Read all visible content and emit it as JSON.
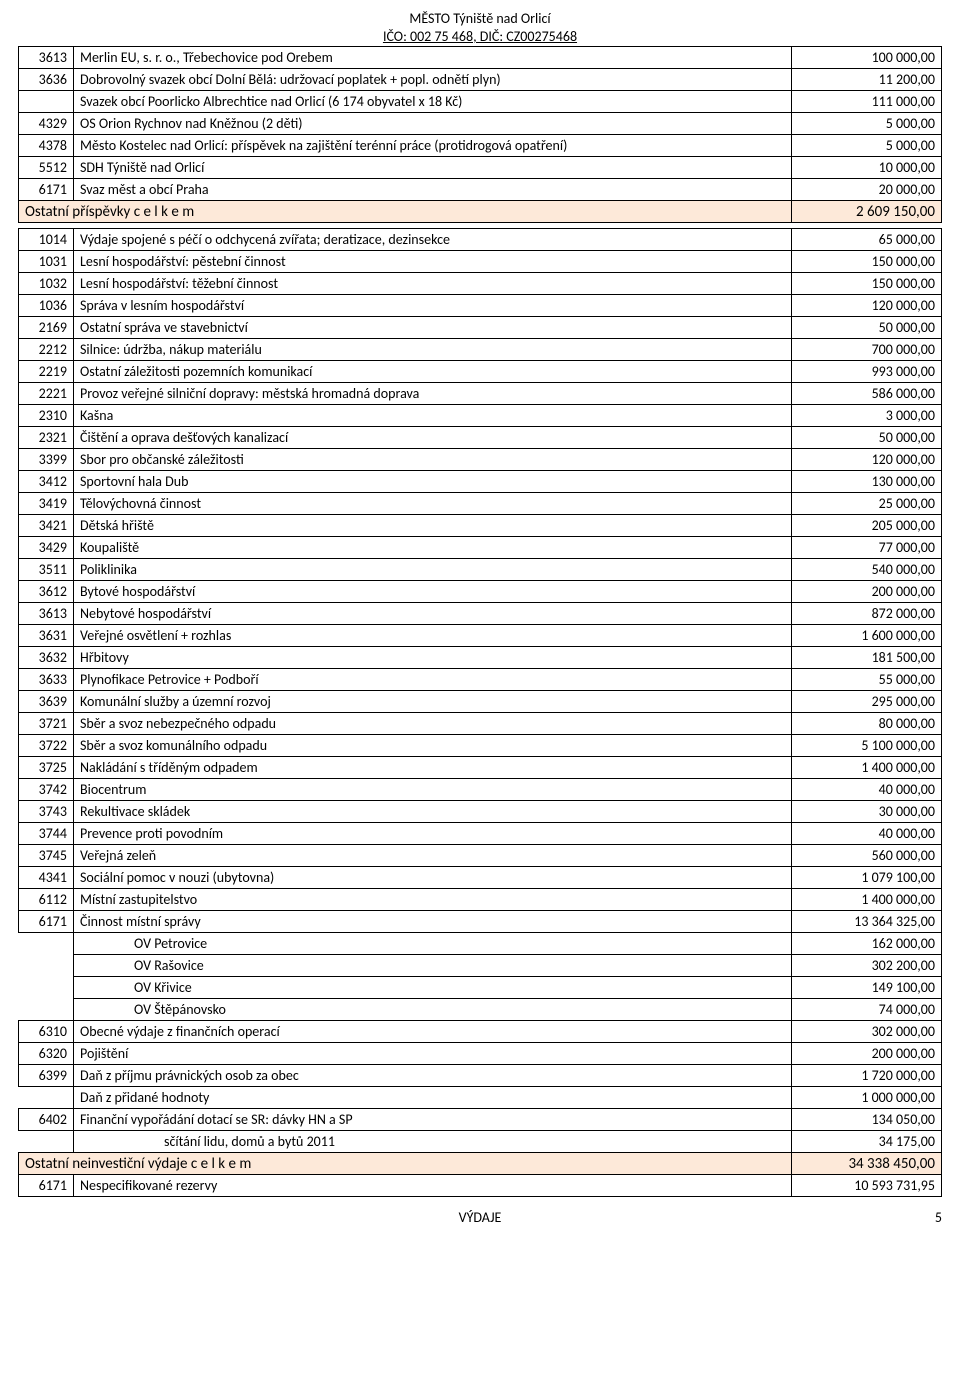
{
  "header": {
    "org": "MĚSTO   Týniště nad Orlicí",
    "ico": "IČO: 002 75 468, DIČ: CZ00275468"
  },
  "section1": [
    {
      "code": "3613",
      "desc": "Merlin EU, s. r. o., Třebechovice pod Orebem",
      "val": "100 000,00"
    },
    {
      "code": "3636",
      "desc": "Dobrovolný svazek obcí Dolní Bělá: udržovací poplatek + popl. odnětí plyn)",
      "val": "11 200,00"
    },
    {
      "code": "",
      "desc": "Svazek obcí Poorlicko Albrechtice nad Orlicí (6 174 obyvatel x 18 Kč)",
      "val": "111 000,00"
    },
    {
      "code": "4329",
      "desc": "OS Orion Rychnov nad Kněžnou (2 děti)",
      "val": "5 000,00"
    },
    {
      "code": "4378",
      "desc": "Město Kostelec nad Orlicí: příspěvek na zajištění terénní práce (protidrogová opatření)",
      "val": "5 000,00"
    },
    {
      "code": "5512",
      "desc": "SDH Týniště nad Orlicí",
      "val": "10 000,00"
    },
    {
      "code": "6171",
      "desc": "Svaz měst a obcí Praha",
      "val": "20 000,00"
    }
  ],
  "total1": {
    "label": "Ostatní příspěvky  c e l k e m",
    "val": "2 609 150,00"
  },
  "section2": [
    {
      "code": "1014",
      "desc": "Výdaje spojené s péčí o odchycená zvířata; deratizace, dezinsekce",
      "val": "65 000,00"
    },
    {
      "code": "1031",
      "desc": "Lesní hospodářství: pěstební činnost",
      "val": "150 000,00"
    },
    {
      "code": "1032",
      "desc": "Lesní hospodářství: těžební činnost",
      "val": "150 000,00"
    },
    {
      "code": "1036",
      "desc": "Správa v lesním hospodářství",
      "val": "120 000,00"
    },
    {
      "code": "2169",
      "desc": "Ostatní správa ve stavebnictví",
      "val": "50 000,00"
    },
    {
      "code": "2212",
      "desc": "Silnice: údržba, nákup materiálu",
      "val": "700 000,00"
    },
    {
      "code": "2219",
      "desc": "Ostatní záležitosti pozemních komunikací",
      "val": "993 000,00"
    },
    {
      "code": "2221",
      "desc": "Provoz veřejné silniční dopravy: městská hromadná doprava",
      "val": "586 000,00"
    },
    {
      "code": "2310",
      "desc": "Kašna",
      "val": "3 000,00"
    },
    {
      "code": "2321",
      "desc": "Čištění a oprava dešťových kanalizací",
      "val": "50 000,00"
    },
    {
      "code": "3399",
      "desc": "Sbor pro občanské záležitosti",
      "val": "120 000,00"
    },
    {
      "code": "3412",
      "desc": "Sportovní hala Dub",
      "val": "130 000,00"
    },
    {
      "code": "3419",
      "desc": "Tělovýchovná činnost",
      "val": "25 000,00"
    },
    {
      "code": "3421",
      "desc": "Dětská hřiště",
      "val": "205 000,00"
    },
    {
      "code": "3429",
      "desc": "Koupaliště",
      "val": "77 000,00"
    },
    {
      "code": "3511",
      "desc": "Poliklinika",
      "val": "540 000,00"
    },
    {
      "code": "3612",
      "desc": "Bytové hospodářství",
      "val": "200 000,00"
    },
    {
      "code": "3613",
      "desc": "Nebytové hospodářství",
      "val": "872 000,00"
    },
    {
      "code": "3631",
      "desc": "Veřejné osvětlení + rozhlas",
      "val": "1 600 000,00"
    },
    {
      "code": "3632",
      "desc": "Hřbitovy",
      "val": "181 500,00"
    },
    {
      "code": "3633",
      "desc": "Plynofikace Petrovice + Podboří",
      "val": "55 000,00"
    },
    {
      "code": "3639",
      "desc": "Komunální služby a územní rozvoj",
      "val": "295 000,00"
    },
    {
      "code": "3721",
      "desc": "Sběr a svoz nebezpečného odpadu",
      "val": "80 000,00"
    },
    {
      "code": "3722",
      "desc": "Sběr a svoz komunálního odpadu",
      "val": "5 100 000,00"
    },
    {
      "code": "3725",
      "desc": "Nakládání s tříděným odpadem",
      "val": "1 400 000,00"
    },
    {
      "code": "3742",
      "desc": "Biocentrum",
      "val": "40 000,00"
    },
    {
      "code": "3743",
      "desc": "Rekultivace skládek",
      "val": "30 000,00"
    },
    {
      "code": "3744",
      "desc": "Prevence proti povodním",
      "val": "40 000,00"
    },
    {
      "code": "3745",
      "desc": "Veřejná zeleň",
      "val": "560 000,00"
    },
    {
      "code": "4341",
      "desc": "Sociální pomoc v nouzi (ubytovna)",
      "val": "1 079 100,00"
    },
    {
      "code": "6112",
      "desc": "Místní zastupitelstvo",
      "val": "1 400 000,00"
    },
    {
      "code": "6171",
      "desc": "Činnost místní správy",
      "val": "13 364 325,00"
    },
    {
      "code": "",
      "desc": "OV Petrovice",
      "val": "162 000,00",
      "indent": "indent1",
      "nocode": true
    },
    {
      "code": "",
      "desc": "OV Rašovice",
      "val": "302 200,00",
      "indent": "indent1",
      "nocode": true
    },
    {
      "code": "",
      "desc": "OV Křivice",
      "val": "149 100,00",
      "indent": "indent1",
      "nocode": true
    },
    {
      "code": "",
      "desc": "OV Štěpánovsko",
      "val": "74 000,00",
      "indent": "indent1",
      "nocode": true
    },
    {
      "code": "6310",
      "desc": "Obecné výdaje z finančních operací",
      "val": "302 000,00"
    },
    {
      "code": "6320",
      "desc": "Pojištění",
      "val": "200 000,00"
    },
    {
      "code": "6399",
      "desc": "Daň z příjmu právnických osob za obec",
      "val": "1 720 000,00"
    },
    {
      "code": "",
      "desc": "Daň z přidané hodnoty",
      "val": "1 000 000,00",
      "nocode": true
    },
    {
      "code": "6402",
      "desc": "Finanční vypořádání dotací se SR: dávky HN a SP",
      "val": "134 050,00"
    },
    {
      "code": "",
      "desc": "sčítání lidu, domů a bytů 2011",
      "val": "34 175,00",
      "indent": "indent2",
      "nocode": true
    }
  ],
  "total2": {
    "label": "Ostatní neinvestiční výdaje  c e l k e m",
    "val": "34 338 450,00"
  },
  "section3": [
    {
      "code": "6171",
      "desc": "Nespecifikované rezervy",
      "val": "10 593 731,95"
    }
  ],
  "footer": {
    "center": "VÝDAJE",
    "page": "5"
  },
  "colors": {
    "total_bg": "#fde9d9",
    "border": "#000000"
  }
}
